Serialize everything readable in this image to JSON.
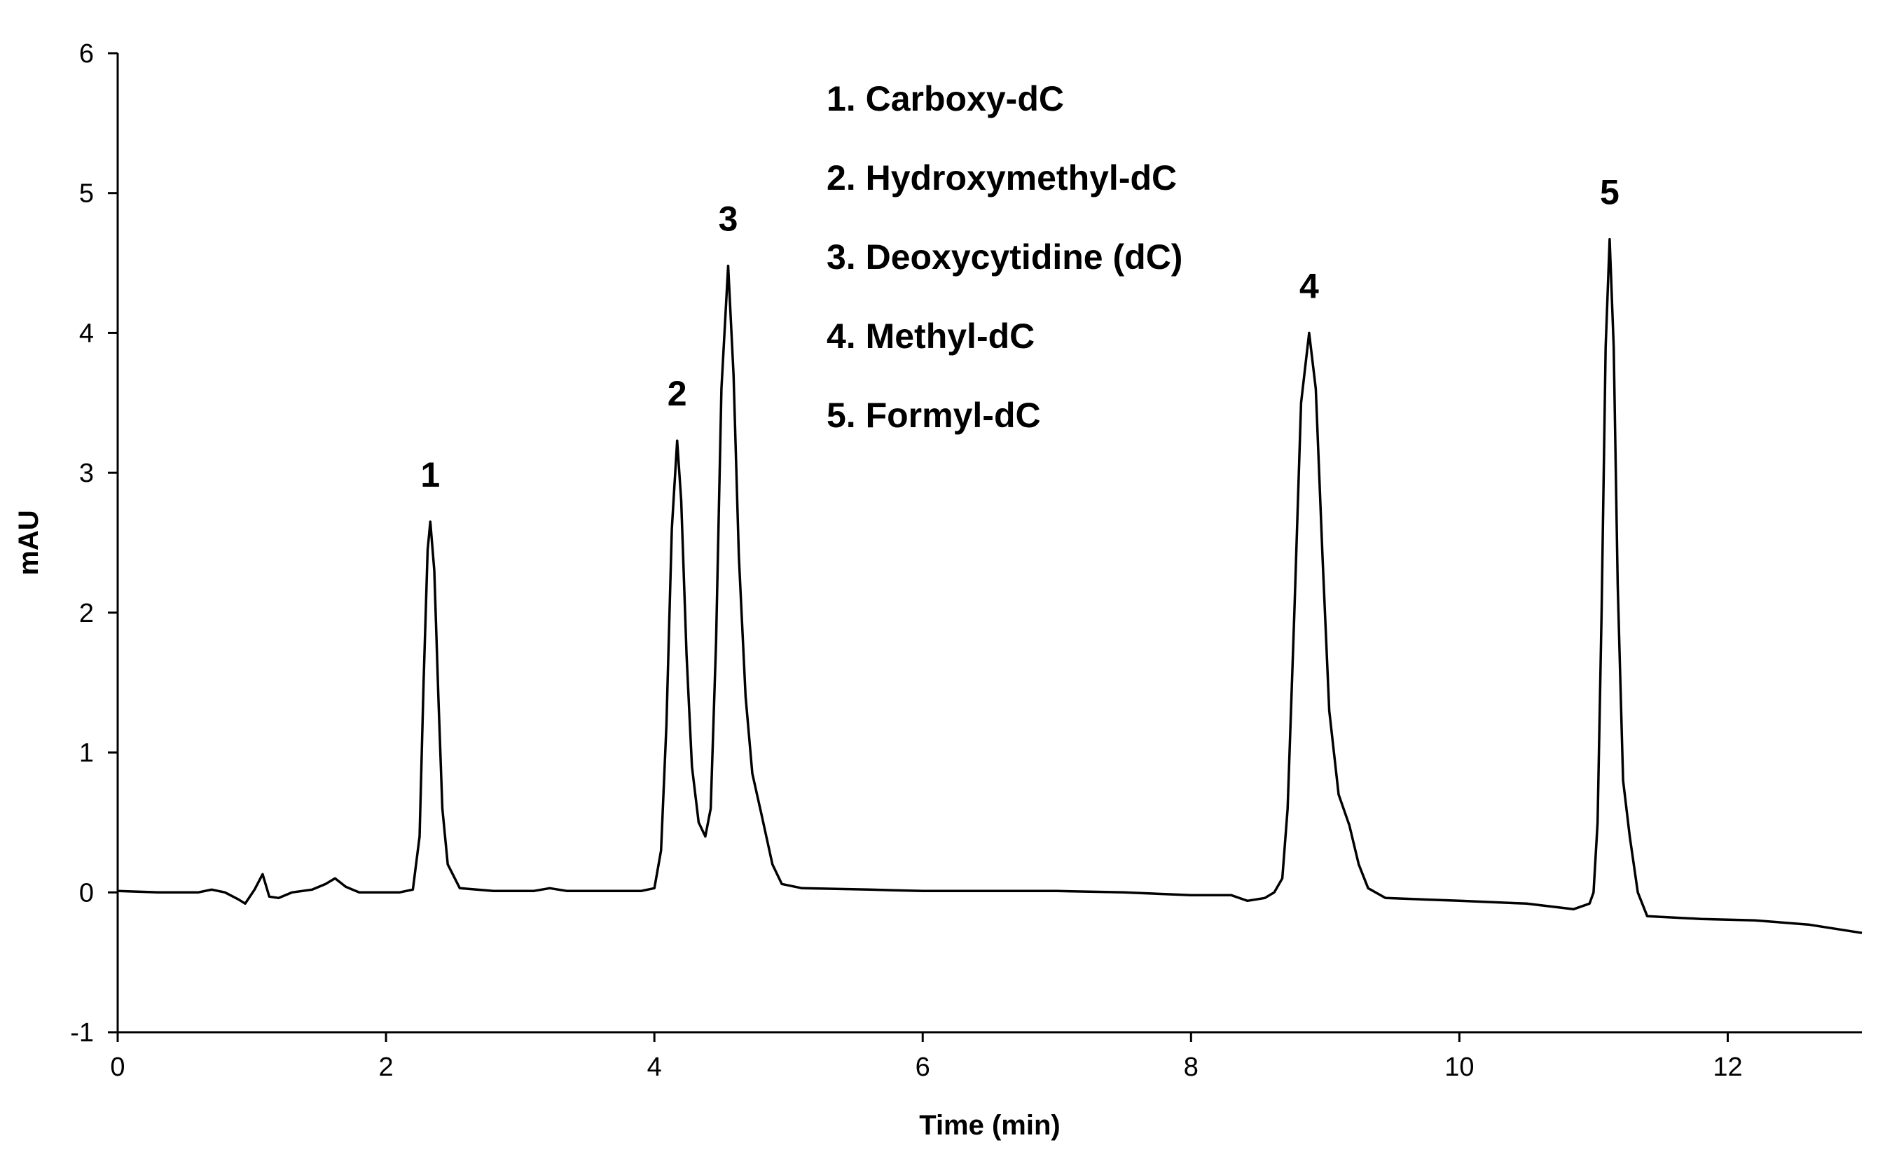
{
  "chart_data": {
    "type": "line",
    "xlabel": "Time (min)",
    "ylabel": "mAU",
    "xlim": [
      0,
      13
    ],
    "ylim": [
      -1,
      6
    ],
    "x_ticks": [
      0,
      2,
      4,
      6,
      8,
      10,
      12
    ],
    "y_ticks": [
      -1,
      0,
      1,
      2,
      3,
      4,
      5,
      6
    ],
    "x_tick_labels": [
      "0",
      "2",
      "4",
      "6",
      "8",
      "10",
      "12"
    ],
    "y_tick_labels": [
      "-1",
      "0",
      "1",
      "2",
      "3",
      "4",
      "5",
      "6"
    ],
    "grid": false,
    "legend": {
      "placement": "top-center",
      "entries": [
        "1. Carboxy-dC",
        "2. Hydroxymethyl-dC",
        "3. Deoxycytidine (dC)",
        "4. Methyl-dC",
        "5. Formyl-dC"
      ]
    },
    "peaks": [
      {
        "label": "1",
        "time": 2.33,
        "height": 2.65
      },
      {
        "label": "2",
        "time": 4.17,
        "height": 3.23
      },
      {
        "label": "3",
        "time": 4.55,
        "height": 4.48
      },
      {
        "label": "4",
        "time": 8.88,
        "height": 4.0
      },
      {
        "label": "5",
        "time": 11.12,
        "height": 4.67
      }
    ],
    "series": [
      {
        "color": "#000000",
        "points": [
          [
            0.0,
            0.01
          ],
          [
            0.3,
            0.0
          ],
          [
            0.6,
            0.0
          ],
          [
            0.7,
            0.02
          ],
          [
            0.8,
            0.0
          ],
          [
            0.9,
            -0.05
          ],
          [
            0.95,
            -0.08
          ],
          [
            1.02,
            0.02
          ],
          [
            1.08,
            0.13
          ],
          [
            1.13,
            -0.03
          ],
          [
            1.2,
            -0.04
          ],
          [
            1.3,
            0.0
          ],
          [
            1.45,
            0.02
          ],
          [
            1.55,
            0.06
          ],
          [
            1.62,
            0.1
          ],
          [
            1.7,
            0.04
          ],
          [
            1.8,
            0.0
          ],
          [
            2.1,
            0.0
          ],
          [
            2.2,
            0.02
          ],
          [
            2.25,
            0.4
          ],
          [
            2.28,
            1.5
          ],
          [
            2.31,
            2.45
          ],
          [
            2.33,
            2.65
          ],
          [
            2.36,
            2.3
          ],
          [
            2.39,
            1.4
          ],
          [
            2.42,
            0.6
          ],
          [
            2.46,
            0.2
          ],
          [
            2.55,
            0.03
          ],
          [
            2.8,
            0.01
          ],
          [
            3.1,
            0.01
          ],
          [
            3.22,
            0.03
          ],
          [
            3.35,
            0.01
          ],
          [
            3.9,
            0.01
          ],
          [
            4.0,
            0.03
          ],
          [
            4.05,
            0.3
          ],
          [
            4.09,
            1.2
          ],
          [
            4.13,
            2.6
          ],
          [
            4.17,
            3.23
          ],
          [
            4.2,
            2.8
          ],
          [
            4.24,
            1.7
          ],
          [
            4.28,
            0.9
          ],
          [
            4.33,
            0.5
          ],
          [
            4.38,
            0.4
          ],
          [
            4.42,
            0.6
          ],
          [
            4.46,
            1.8
          ],
          [
            4.5,
            3.6
          ],
          [
            4.55,
            4.48
          ],
          [
            4.59,
            3.7
          ],
          [
            4.63,
            2.4
          ],
          [
            4.68,
            1.4
          ],
          [
            4.73,
            0.85
          ],
          [
            4.8,
            0.55
          ],
          [
            4.88,
            0.2
          ],
          [
            4.95,
            0.06
          ],
          [
            5.1,
            0.03
          ],
          [
            5.6,
            0.02
          ],
          [
            6.0,
            0.01
          ],
          [
            6.5,
            0.01
          ],
          [
            7.0,
            0.01
          ],
          [
            7.5,
            0.0
          ],
          [
            8.0,
            -0.02
          ],
          [
            8.3,
            -0.02
          ],
          [
            8.42,
            -0.06
          ],
          [
            8.55,
            -0.04
          ],
          [
            8.62,
            0.0
          ],
          [
            8.68,
            0.1
          ],
          [
            8.72,
            0.6
          ],
          [
            8.77,
            2.0
          ],
          [
            8.82,
            3.5
          ],
          [
            8.88,
            4.0
          ],
          [
            8.93,
            3.6
          ],
          [
            8.98,
            2.4
          ],
          [
            9.03,
            1.3
          ],
          [
            9.1,
            0.7
          ],
          [
            9.18,
            0.48
          ],
          [
            9.25,
            0.2
          ],
          [
            9.32,
            0.03
          ],
          [
            9.45,
            -0.04
          ],
          [
            10.0,
            -0.06
          ],
          [
            10.5,
            -0.08
          ],
          [
            10.85,
            -0.12
          ],
          [
            10.97,
            -0.08
          ],
          [
            11.0,
            0.0
          ],
          [
            11.03,
            0.5
          ],
          [
            11.06,
            2.0
          ],
          [
            11.09,
            3.9
          ],
          [
            11.12,
            4.67
          ],
          [
            11.15,
            3.9
          ],
          [
            11.18,
            2.2
          ],
          [
            11.22,
            0.8
          ],
          [
            11.27,
            0.4
          ],
          [
            11.33,
            0.0
          ],
          [
            11.4,
            -0.17
          ],
          [
            11.8,
            -0.19
          ],
          [
            12.2,
            -0.2
          ],
          [
            12.6,
            -0.23
          ],
          [
            13.0,
            -0.29
          ]
        ]
      }
    ]
  }
}
